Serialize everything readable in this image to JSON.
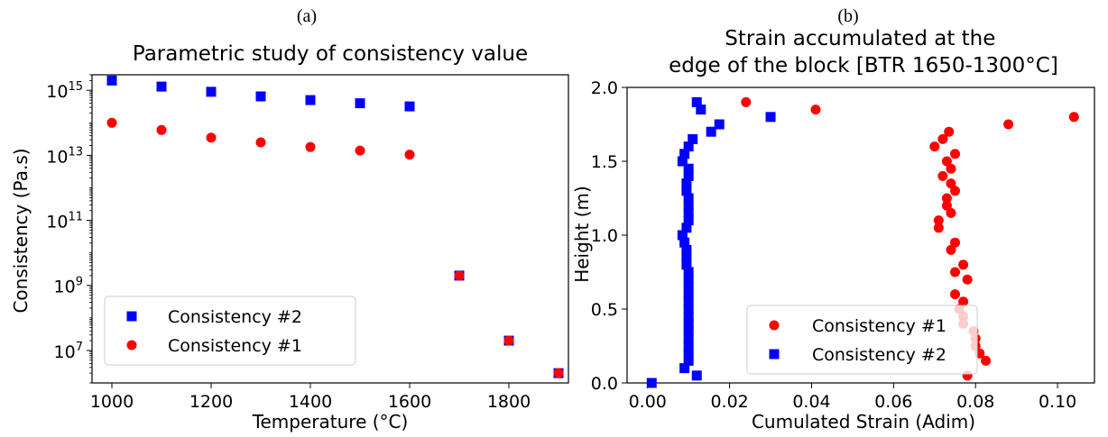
{
  "panels": [
    {
      "label": "(a)"
    },
    {
      "label": "(b)"
    }
  ],
  "chart_data": [
    {
      "type": "scatter",
      "title": "Parametric study of consistency value",
      "xlabel": "Temperature (°C)",
      "ylabel": "Consistency (Pa.s)",
      "yscale": "log",
      "xlim": [
        960,
        1920
      ],
      "ylim": [
        1000000.0,
        3000000000000000.0
      ],
      "xticks": [
        1000,
        1200,
        1400,
        1600,
        1800
      ],
      "yticks": [
        {
          "base": "10",
          "exp": "7",
          "value": 10000000.0
        },
        {
          "base": "10",
          "exp": "9",
          "value": 1000000000.0
        },
        {
          "base": "10",
          "exp": "11",
          "value": 100000000000.0
        },
        {
          "base": "10",
          "exp": "13",
          "value": 10000000000000.0
        },
        {
          "base": "10",
          "exp": "15",
          "value": 1000000000000000.0
        }
      ],
      "grid": false,
      "legend": {
        "placement": "lower-left"
      },
      "series": [
        {
          "name": "Consistency #2",
          "marker": "square",
          "color": "#0000ff",
          "points": [
            [
              1000,
              2000000000000000.0
            ],
            [
              1100,
              1300000000000000.0
            ],
            [
              1200,
              900000000000000.0
            ],
            [
              1300,
              650000000000000.0
            ],
            [
              1400,
              500000000000000.0
            ],
            [
              1500,
              400000000000000.0
            ],
            [
              1600,
              320000000000000.0
            ],
            [
              1700,
              2000000000.0
            ],
            [
              1800,
              20000000.0
            ],
            [
              1900,
              2000000.0
            ]
          ]
        },
        {
          "name": "Consistency #1",
          "marker": "circle",
          "color": "#ff0000",
          "points": [
            [
              1000,
              100000000000000.0
            ],
            [
              1100,
              60000000000000.0
            ],
            [
              1200,
              35000000000000.0
            ],
            [
              1300,
              25000000000000.0
            ],
            [
              1400,
              18000000000000.0
            ],
            [
              1500,
              14000000000000.0
            ],
            [
              1600,
              10500000000000.0
            ],
            [
              1700,
              2000000000.0
            ],
            [
              1800,
              20000000.0
            ],
            [
              1900,
              2000000.0
            ]
          ]
        }
      ]
    },
    {
      "type": "scatter",
      "title": "Strain accumulated at the\nedge of the block [BTR 1650-1300°C]",
      "xlabel": "Cumulated Strain (Adim)",
      "ylabel": "Height (m)",
      "xlim": [
        -0.005,
        0.109
      ],
      "ylim": [
        0,
        2.0
      ],
      "xticks": [
        0.0,
        0.02,
        0.04,
        0.06,
        0.08,
        0.1
      ],
      "xtick_labels": [
        "0.00",
        "0.02",
        "0.04",
        "0.06",
        "0.08",
        "0.10"
      ],
      "yticks": [
        0.0,
        0.5,
        1.0,
        1.5,
        2.0
      ],
      "ytick_labels": [
        "0.0",
        "0.5",
        "1.0",
        "1.5",
        "2.0"
      ],
      "grid": false,
      "legend": {
        "placement": "lower-right"
      },
      "series": [
        {
          "name": "Consistency #1",
          "marker": "circle",
          "color": "#ff0000",
          "points": [
            [
              0.078,
              0.05
            ],
            [
              0.0825,
              0.15
            ],
            [
              0.081,
              0.2
            ],
            [
              0.08,
              0.25
            ],
            [
              0.08,
              0.3
            ],
            [
              0.0795,
              0.35
            ],
            [
              0.077,
              0.4
            ],
            [
              0.077,
              0.45
            ],
            [
              0.076,
              0.5
            ],
            [
              0.077,
              0.55
            ],
            [
              0.075,
              0.6
            ],
            [
              0.078,
              0.7
            ],
            [
              0.075,
              0.75
            ],
            [
              0.077,
              0.8
            ],
            [
              0.074,
              0.9
            ],
            [
              0.075,
              0.95
            ],
            [
              0.071,
              1.05
            ],
            [
              0.071,
              1.1
            ],
            [
              0.074,
              1.15
            ],
            [
              0.073,
              1.2
            ],
            [
              0.073,
              1.25
            ],
            [
              0.075,
              1.3
            ],
            [
              0.074,
              1.35
            ],
            [
              0.072,
              1.4
            ],
            [
              0.074,
              1.45
            ],
            [
              0.073,
              1.5
            ],
            [
              0.075,
              1.55
            ],
            [
              0.07,
              1.6
            ],
            [
              0.072,
              1.65
            ],
            [
              0.0735,
              1.7
            ],
            [
              0.088,
              1.75
            ],
            [
              0.024,
              1.9
            ],
            [
              0.041,
              1.85
            ],
            [
              0.104,
              1.8
            ]
          ]
        },
        {
          "name": "Consistency #2",
          "marker": "square",
          "color": "#0000ff",
          "points": [
            [
              0.001,
              0.0
            ],
            [
              0.012,
              0.05
            ],
            [
              0.009,
              0.1
            ],
            [
              0.01,
              0.15
            ],
            [
              0.01,
              0.2
            ],
            [
              0.01,
              0.25
            ],
            [
              0.01,
              0.3
            ],
            [
              0.01,
              0.35
            ],
            [
              0.01,
              0.4
            ],
            [
              0.01,
              0.45
            ],
            [
              0.01,
              0.5
            ],
            [
              0.01,
              0.55
            ],
            [
              0.01,
              0.6
            ],
            [
              0.01,
              0.65
            ],
            [
              0.01,
              0.7
            ],
            [
              0.01,
              0.75
            ],
            [
              0.0095,
              0.8
            ],
            [
              0.0095,
              0.85
            ],
            [
              0.0095,
              0.9
            ],
            [
              0.009,
              0.95
            ],
            [
              0.0085,
              1.0
            ],
            [
              0.0095,
              1.05
            ],
            [
              0.01,
              1.1
            ],
            [
              0.01,
              1.15
            ],
            [
              0.01,
              1.2
            ],
            [
              0.01,
              1.25
            ],
            [
              0.0095,
              1.3
            ],
            [
              0.0095,
              1.35
            ],
            [
              0.01,
              1.4
            ],
            [
              0.01,
              1.45
            ],
            [
              0.0085,
              1.5
            ],
            [
              0.009,
              1.55
            ],
            [
              0.01,
              1.6
            ],
            [
              0.011,
              1.65
            ],
            [
              0.0155,
              1.7
            ],
            [
              0.0175,
              1.75
            ],
            [
              0.03,
              1.8
            ],
            [
              0.013,
              1.85
            ],
            [
              0.012,
              1.9
            ]
          ]
        }
      ]
    }
  ]
}
